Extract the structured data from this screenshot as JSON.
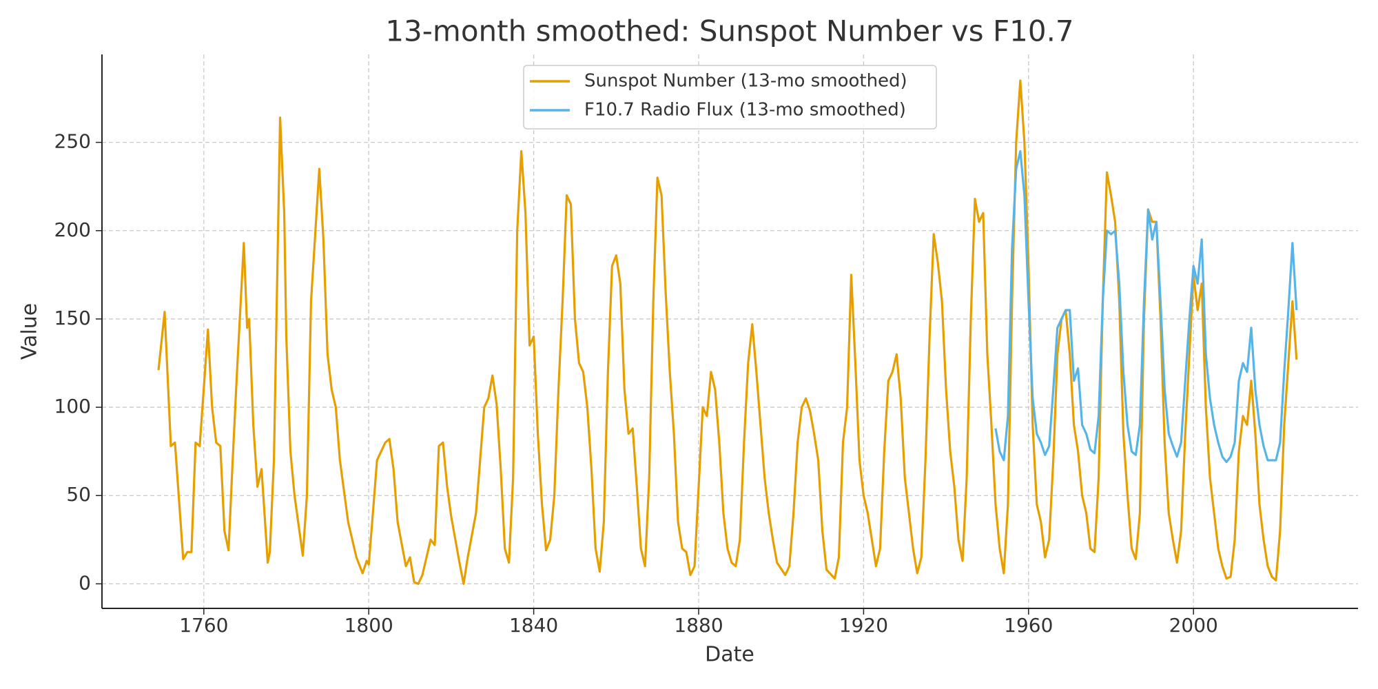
{
  "chart_data": {
    "type": "line",
    "title": "13-month smoothed: Sunspot Number vs F10.7",
    "x_label": "Date",
    "y_label": "Value",
    "xlim": [
      1735.3,
      2039.9
    ],
    "ylim": [
      -13.9,
      299.8
    ],
    "xticks": [
      1760,
      1800,
      1840,
      1880,
      1920,
      1960,
      2000
    ],
    "yticks": [
      0,
      50,
      100,
      150,
      200,
      250
    ],
    "grid": true,
    "legend": "upper center",
    "series": [
      {
        "name": "Sunspot Number (13-mo smoothed)",
        "color": "#E69F00",
        "x": [
          1749,
          1750.5,
          1752,
          1753,
          1755,
          1756,
          1757,
          1758,
          1759,
          1761,
          1762,
          1763,
          1764,
          1765,
          1766,
          1767,
          1768,
          1769.7,
          1770.5,
          1771,
          1772,
          1773,
          1774,
          1775.5,
          1776,
          1777,
          1778.5,
          1779.5,
          1780,
          1781,
          1782,
          1784,
          1785,
          1786,
          1788,
          1789,
          1790,
          1791,
          1792,
          1793,
          1795,
          1797,
          1798.5,
          1799.5,
          1800,
          1801,
          1802,
          1803,
          1804,
          1805,
          1806,
          1807,
          1809,
          1810,
          1811,
          1812,
          1813,
          1815,
          1816,
          1817,
          1818,
          1819,
          1820,
          1822,
          1823,
          1824,
          1826,
          1828,
          1829,
          1830,
          1831,
          1832,
          1833,
          1834,
          1835,
          1836,
          1837,
          1838,
          1839,
          1840,
          1841,
          1842,
          1843,
          1844,
          1845,
          1846,
          1847,
          1848,
          1849,
          1850,
          1851,
          1852,
          1853,
          1854,
          1855,
          1856,
          1857,
          1858,
          1859,
          1860,
          1861,
          1862,
          1863,
          1864,
          1865,
          1866,
          1867,
          1868,
          1869,
          1870,
          1871,
          1872,
          1873,
          1874,
          1875,
          1876,
          1877,
          1878,
          1879,
          1880,
          1881,
          1882,
          1883,
          1884,
          1885,
          1886,
          1887,
          1888,
          1889,
          1890,
          1891,
          1892,
          1893,
          1894,
          1895,
          1896,
          1897,
          1898,
          1899,
          1901,
          1902,
          1903,
          1904,
          1905,
          1906,
          1907,
          1908,
          1909,
          1910,
          1911,
          1913,
          1914,
          1915,
          1916,
          1917,
          1918,
          1919,
          1920,
          1921,
          1922,
          1923,
          1924,
          1925,
          1926,
          1927,
          1928,
          1929,
          1930,
          1931,
          1932,
          1933,
          1934,
          1935,
          1936,
          1937,
          1938,
          1939,
          1940,
          1941,
          1942,
          1943,
          1944,
          1945,
          1946,
          1947,
          1948,
          1949,
          1950,
          1951,
          1952,
          1953,
          1954,
          1955,
          1956,
          1957,
          1958,
          1959,
          1960,
          1961,
          1962,
          1963,
          1964,
          1965,
          1966,
          1967,
          1968,
          1969,
          1970,
          1971,
          1972,
          1973,
          1974,
          1975,
          1976,
          1977,
          1978,
          1979,
          1980,
          1981,
          1982,
          1983,
          1984,
          1985,
          1986,
          1987,
          1988,
          1989,
          1990,
          1991,
          1992,
          1993,
          1994,
          1995,
          1996,
          1997,
          1998,
          1999,
          2000,
          2001,
          2002,
          2003,
          2004,
          2005,
          2006,
          2007,
          2008,
          2009,
          2010,
          2011,
          2012,
          2013,
          2014,
          2015,
          2016,
          2017,
          2018,
          2019,
          2020,
          2021,
          2022,
          2023,
          2024,
          2025
        ],
        "values": [
          121,
          154,
          78,
          80,
          14,
          18,
          18,
          80,
          78,
          144,
          100,
          80,
          78,
          30,
          19,
          70,
          118,
          193,
          145,
          150,
          90,
          55,
          65,
          12,
          18,
          70,
          264,
          210,
          140,
          75,
          50,
          16,
          50,
          160,
          235,
          195,
          130,
          110,
          100,
          70,
          35,
          15,
          6,
          13,
          11,
          40,
          70,
          75,
          80,
          82,
          65,
          35,
          10,
          15,
          1,
          0,
          5,
          25,
          22,
          78,
          80,
          55,
          38,
          12,
          0,
          15,
          40,
          100,
          105,
          118,
          102,
          65,
          20,
          12,
          60,
          200,
          245,
          210,
          135,
          140,
          85,
          45,
          19,
          25,
          50,
          110,
          160,
          220,
          215,
          150,
          125,
          120,
          100,
          65,
          20,
          7,
          35,
          120,
          180,
          186,
          170,
          110,
          85,
          88,
          55,
          20,
          10,
          60,
          160,
          230,
          220,
          165,
          120,
          85,
          35,
          20,
          18,
          5,
          10,
          55,
          100,
          95,
          120,
          110,
          80,
          40,
          20,
          12,
          10,
          25,
          80,
          125,
          147,
          120,
          90,
          60,
          40,
          25,
          12,
          5,
          10,
          40,
          80,
          100,
          105,
          98,
          85,
          70,
          30,
          8,
          3,
          15,
          80,
          100,
          175,
          125,
          70,
          50,
          40,
          25,
          10,
          20,
          75,
          115,
          120,
          130,
          105,
          60,
          40,
          20,
          6,
          15,
          70,
          140,
          198,
          182,
          160,
          110,
          75,
          55,
          25,
          13,
          60,
          150,
          218,
          205,
          210,
          130,
          90,
          45,
          20,
          6,
          45,
          160,
          250,
          285,
          250,
          180,
          90,
          45,
          35,
          15,
          25,
          70,
          130,
          150,
          155,
          130,
          90,
          75,
          50,
          40,
          20,
          18,
          60,
          160,
          233,
          220,
          205,
          160,
          85,
          50,
          20,
          14,
          40,
          150,
          212,
          205,
          205,
          150,
          80,
          40,
          25,
          12,
          30,
          85,
          130,
          175,
          155,
          170,
          100,
          60,
          40,
          20,
          10,
          3,
          4,
          25,
          75,
          95,
          90,
          115,
          85,
          45,
          25,
          10,
          4,
          2,
          30,
          90,
          125,
          160,
          127
        ]
      },
      {
        "name": "F10.7 Radio Flux (13-mo smoothed)",
        "color": "#56B4E9",
        "x": [
          1952,
          1953,
          1954,
          1955,
          1956,
          1957,
          1958,
          1959,
          1960,
          1961,
          1962,
          1963,
          1964,
          1965,
          1966,
          1967,
          1968,
          1969,
          1970,
          1971,
          1972,
          1973,
          1974,
          1975,
          1976,
          1977,
          1978,
          1979,
          1980,
          1981,
          1982,
          1983,
          1984,
          1985,
          1986,
          1987,
          1988,
          1989,
          1990,
          1991,
          1992,
          1993,
          1994,
          1995,
          1996,
          1997,
          1998,
          1999,
          2000,
          2001,
          2002,
          2003,
          2004,
          2005,
          2006,
          2007,
          2008,
          2009,
          2010,
          2011,
          2012,
          2013,
          2014,
          2015,
          2016,
          2017,
          2018,
          2019,
          2020,
          2021,
          2022,
          2023,
          2024,
          2025
        ],
        "values": [
          88,
          75,
          70,
          95,
          190,
          235,
          245,
          220,
          160,
          105,
          85,
          80,
          73,
          78,
          110,
          145,
          150,
          155,
          155,
          115,
          122,
          90,
          85,
          76,
          74,
          95,
          160,
          200,
          198,
          200,
          170,
          120,
          90,
          75,
          73,
          90,
          160,
          212,
          195,
          205,
          160,
          110,
          85,
          78,
          72,
          80,
          115,
          150,
          180,
          170,
          195,
          130,
          105,
          90,
          80,
          72,
          69,
          72,
          80,
          115,
          125,
          120,
          145,
          110,
          90,
          78,
          70,
          70,
          70,
          80,
          120,
          155,
          193,
          155
        ]
      }
    ]
  }
}
